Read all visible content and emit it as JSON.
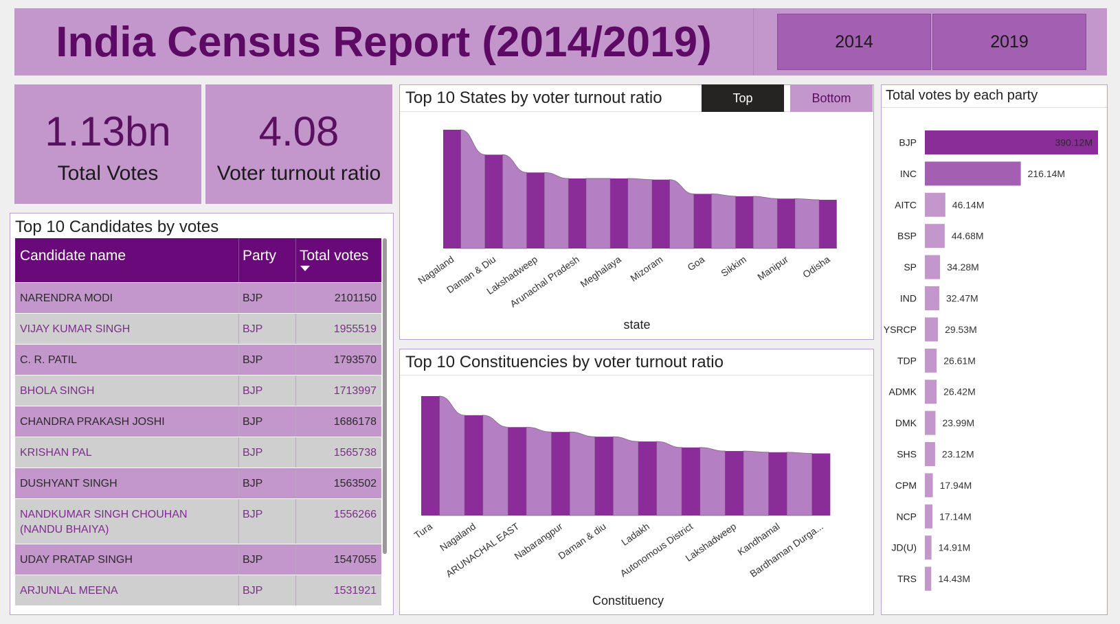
{
  "header": {
    "title": "India Census Report (2014/2019)"
  },
  "year_slicer": [
    "2014",
    "2019"
  ],
  "kpis": {
    "total_votes": {
      "value": "1.13bn",
      "label": "Total Votes"
    },
    "turnout": {
      "value": "4.08",
      "label": "Voter turnout ratio"
    }
  },
  "candidates": {
    "title": "Top 10 Candidates by votes",
    "columns": [
      "Candidate name",
      "Party",
      "Total votes"
    ],
    "rows": [
      [
        "NARENDRA MODI",
        "BJP",
        "2101150"
      ],
      [
        "VIJAY KUMAR SINGH",
        "BJP",
        "1955519"
      ],
      [
        "C. R. PATIL",
        "BJP",
        "1793570"
      ],
      [
        "BHOLA SINGH",
        "BJP",
        "1713997"
      ],
      [
        "CHANDRA PRAKASH JOSHI",
        "BJP",
        "1686178"
      ],
      [
        "KRISHAN PAL",
        "BJP",
        "1565738"
      ],
      [
        "DUSHYANT SINGH",
        "BJP",
        "1563502"
      ],
      [
        "NANDKUMAR SINGH CHOUHAN (NANDU BHAIYA)",
        "BJP",
        "1556266"
      ],
      [
        "UDAY PRATAP SINGH",
        "BJP",
        "1547055"
      ],
      [
        "ARJUNLAL MEENA",
        "BJP",
        "1531921"
      ]
    ]
  },
  "toggle": {
    "top": "Top",
    "bottom": "Bottom"
  },
  "colors": {
    "dark_bar": "#8a2d98",
    "light_bar": "#b57fc3",
    "header_bg": "#c497cc",
    "table_head": "#6a0a7a"
  },
  "chart_data": [
    {
      "type": "bar",
      "title": "Top 10 States by voter turnout ratio",
      "xlabel": "state",
      "categories": [
        "Nagaland",
        "Daman & Diu",
        "Lakshadweep",
        "Arunachal Pradesh",
        "Meghalaya",
        "Mizoram",
        "Goa",
        "Sikkim",
        "Manipur",
        "Odisha"
      ],
      "values": [
        1.0,
        0.79,
        0.64,
        0.59,
        0.59,
        0.58,
        0.46,
        0.44,
        0.42,
        0.41
      ],
      "y_axis_shown": false
    },
    {
      "type": "bar",
      "title": "Top 10 Constituencies by voter turnout ratio",
      "xlabel": "Constituency",
      "categories": [
        "Tura",
        "Nagaland",
        "ARUNACHAL EAST",
        "Nabarangpur",
        "Daman & diu",
        "Ladakh",
        "Autonomous District",
        "Lakshadweep",
        "Kandhamal",
        "Bardhaman Durga..."
      ],
      "values": [
        1.0,
        0.84,
        0.74,
        0.7,
        0.66,
        0.62,
        0.57,
        0.54,
        0.53,
        0.52
      ],
      "y_axis_shown": false
    },
    {
      "type": "bar",
      "orientation": "horizontal",
      "title": "Total votes by each party",
      "categories": [
        "BJP",
        "INC",
        "AITC",
        "BSP",
        "SP",
        "IND",
        "YSRCP",
        "TDP",
        "ADMK",
        "DMK",
        "SHS",
        "CPM",
        "NCP",
        "JD(U)",
        "TRS"
      ],
      "values": [
        390.12,
        216.14,
        46.14,
        44.68,
        34.28,
        32.47,
        29.53,
        26.61,
        26.42,
        23.99,
        23.12,
        17.94,
        17.14,
        14.91,
        14.43
      ],
      "labels": [
        "390.12M",
        "216.14M",
        "46.14M",
        "44.68M",
        "34.28M",
        "32.47M",
        "29.53M",
        "26.61M",
        "26.42M",
        "23.99M",
        "23.12M",
        "17.94M",
        "17.14M",
        "14.91M",
        "14.43M"
      ],
      "unit": "M"
    }
  ]
}
